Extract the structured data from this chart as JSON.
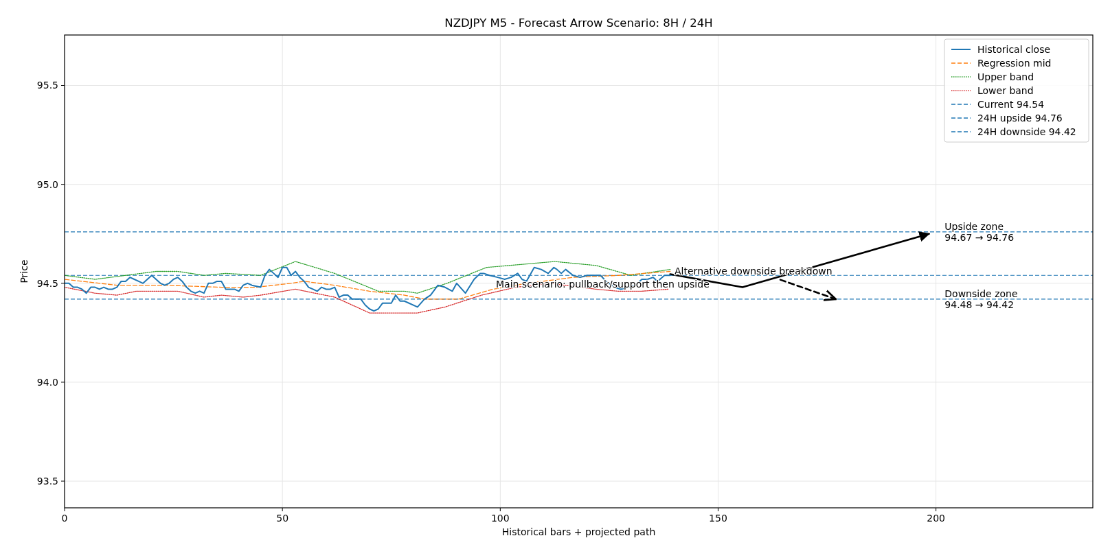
{
  "chart_data": {
    "type": "line",
    "title": "NZDJPY M5 - Forecast Arrow Scenario: 8H / 24H",
    "xlabel": "Historical bars + projected path",
    "ylabel": "Price",
    "xlim": [
      0,
      236
    ],
    "xticks": [
      0,
      50,
      100,
      150,
      200
    ],
    "ylim": [
      93.365,
      95.755
    ],
    "yticks": [
      93.5,
      {
        "value": 94,
        "label": "94.0"
      },
      94.5,
      {
        "value": 95,
        "label": "95.0"
      },
      95.5
    ],
    "grid": true,
    "legend": "top right",
    "series": [
      {
        "name": "Historical close",
        "color": "#1f77b4",
        "line_style": "solid",
        "x": [
          0,
          1,
          2,
          3,
          4,
          5,
          6,
          7,
          8,
          9,
          10,
          11,
          12,
          13,
          14,
          15,
          16,
          17,
          18,
          19,
          20,
          21,
          22,
          23,
          24,
          25,
          26,
          27,
          28,
          29,
          30,
          31,
          32,
          33,
          34,
          35,
          36,
          37,
          38,
          39,
          40,
          41,
          42,
          43,
          45,
          46,
          47,
          48,
          49,
          50,
          51,
          52,
          53,
          54,
          55,
          56,
          57,
          58,
          59,
          60,
          61,
          62,
          63,
          64,
          65,
          66,
          67,
          68,
          69,
          70,
          71,
          72,
          73,
          75,
          76,
          77,
          78,
          81,
          82.6,
          84,
          85.7,
          87.3,
          89,
          90,
          92,
          94,
          95.4,
          96.2,
          97.5,
          99.4,
          101,
          102.5,
          104,
          105,
          106,
          107.8,
          109.4,
          111,
          112.3,
          113,
          114,
          115,
          116.7,
          118.3,
          120,
          121.7,
          123,
          124.3,
          126.2,
          127.7,
          129.3,
          131,
          132.5,
          133.8,
          135.1,
          136.1,
          137.7,
          139
        ],
        "values": [
          94.5,
          94.5,
          94.48,
          94.48,
          94.47,
          94.45,
          94.48,
          94.48,
          94.47,
          94.48,
          94.47,
          94.47,
          94.48,
          94.51,
          94.51,
          94.53,
          94.52,
          94.51,
          94.5,
          94.52,
          94.54,
          94.52,
          94.5,
          94.49,
          94.5,
          94.52,
          94.53,
          94.51,
          94.48,
          94.46,
          94.45,
          94.46,
          94.45,
          94.5,
          94.5,
          94.51,
          94.51,
          94.47,
          94.47,
          94.47,
          94.46,
          94.49,
          94.5,
          94.49,
          94.48,
          94.54,
          94.57,
          94.55,
          94.53,
          94.58,
          94.58,
          94.54,
          94.56,
          94.53,
          94.51,
          94.48,
          94.47,
          94.46,
          94.48,
          94.47,
          94.47,
          94.48,
          94.43,
          94.44,
          94.44,
          94.42,
          94.42,
          94.42,
          94.39,
          94.37,
          94.36,
          94.37,
          94.4,
          94.4,
          94.44,
          94.41,
          94.41,
          94.38,
          94.42,
          94.44,
          94.49,
          94.48,
          94.46,
          94.5,
          94.45,
          94.52,
          94.55,
          94.55,
          94.54,
          94.53,
          94.52,
          94.53,
          94.55,
          94.52,
          94.51,
          94.58,
          94.57,
          94.55,
          94.58,
          94.57,
          94.55,
          94.57,
          94.54,
          94.53,
          94.54,
          94.54,
          94.54,
          94.51,
          94.48,
          94.47,
          94.48,
          94.49,
          94.52,
          94.52,
          94.53,
          94.51,
          94.54,
          94.54
        ]
      },
      {
        "name": "Regression mid",
        "color": "#ff7f0e",
        "line_style": "dashed",
        "x": [
          0,
          12,
          23,
          36,
          44,
          52,
          55,
          62,
          70,
          78,
          82.6,
          90.5,
          98.3,
          106.2,
          116.7,
          127.2,
          139
        ],
        "values": [
          94.52,
          94.49,
          94.49,
          94.48,
          94.48,
          94.5,
          94.51,
          94.49,
          94.46,
          94.44,
          94.42,
          94.42,
          94.47,
          94.5,
          94.53,
          94.54,
          94.56
        ]
      },
      {
        "name": "Upper band",
        "color": "#2ca02c",
        "line_style": "dotted",
        "x": [
          0,
          7,
          14,
          21,
          26,
          32,
          37,
          45,
          53,
          62,
          72,
          78,
          81,
          87.8,
          96.8,
          112.5,
          122,
          130,
          139
        ],
        "values": [
          94.54,
          94.52,
          94.54,
          94.56,
          94.56,
          94.54,
          94.55,
          94.54,
          94.61,
          94.55,
          94.46,
          94.46,
          94.45,
          94.5,
          94.58,
          94.61,
          94.59,
          94.54,
          94.57
        ]
      },
      {
        "name": "Lower band",
        "color": "#d62728",
        "line_style": "dotted",
        "x": [
          0,
          7,
          12,
          16.5,
          26,
          32,
          36,
          41,
          45,
          53,
          62,
          70,
          78,
          81,
          87.3,
          95.7,
          103.6,
          111.5,
          122,
          127,
          132.5,
          138.5
        ],
        "values": [
          94.48,
          94.45,
          94.44,
          94.46,
          94.46,
          94.43,
          94.44,
          94.43,
          94.44,
          94.47,
          94.43,
          94.35,
          94.35,
          94.35,
          94.38,
          94.44,
          94.48,
          94.5,
          94.47,
          94.46,
          94.46,
          94.47
        ]
      },
      {
        "color": "#000000",
        "line_style": "solid",
        "x": [
          139,
          155.6,
          198.4
        ],
        "values": [
          94.546,
          94.48,
          94.75
        ]
      },
      {
        "color": "#000000",
        "line_style": "dashed",
        "x": [
          164,
          177
        ],
        "values": [
          94.52,
          94.42
        ]
      }
    ],
    "ref_lines": [
      {
        "axis": "y",
        "value": 94.54,
        "label": "Current 94.54",
        "color": "#1f77b4",
        "line_style": "dashed"
      },
      {
        "axis": "y",
        "value": 94.76,
        "label": "24H upside 94.76",
        "color": "#1f77b4",
        "line_style": "dashed"
      },
      {
        "axis": "y",
        "value": 94.42,
        "label": "24H downside 94.42",
        "color": "#1f77b4",
        "line_style": "dashed"
      }
    ],
    "annotations": [
      {
        "text": "Alternative downside breakdown",
        "x": 140,
        "y": 94.546
      },
      {
        "text": "Main scenario: pullback/support then upside",
        "x": 99,
        "y": 94.48
      },
      {
        "text": "Upside zone\n94.67 → 94.76",
        "x": 202,
        "y": 94.76
      },
      {
        "text": "Downside zone\n94.48 → 94.42",
        "x": 202,
        "y": 94.42
      }
    ]
  }
}
